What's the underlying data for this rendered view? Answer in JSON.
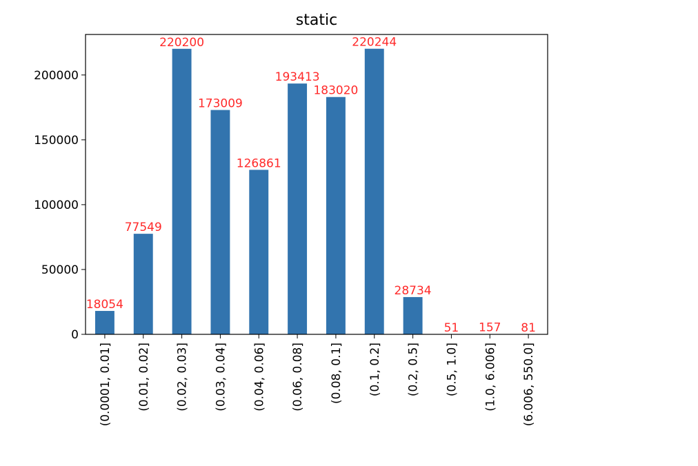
{
  "chart_data": {
    "type": "bar",
    "title": "static",
    "xlabel": "",
    "ylabel": "",
    "categories": [
      "(0.0001, 0.01]",
      "(0.01, 0.02]",
      "(0.02, 0.03]",
      "(0.03, 0.04]",
      "(0.04, 0.06]",
      "(0.06, 0.08]",
      "(0.08, 0.1]",
      "(0.1, 0.2]",
      "(0.2, 0.5]",
      "(0.5, 1.0]",
      "(1.0, 6.006]",
      "(6.006, 550.0]"
    ],
    "values": [
      18054,
      77549,
      220200,
      173009,
      126861,
      193413,
      183020,
      220244,
      28734,
      51,
      157,
      81
    ],
    "data_labels": [
      "18054",
      "77549",
      "220200",
      "173009",
      "126861",
      "193413",
      "183020",
      "220244",
      "28734",
      "51",
      "157",
      "81"
    ],
    "yticks": [
      0,
      50000,
      100000,
      150000,
      200000
    ],
    "ytick_labels": [
      "0",
      "50000",
      "100000",
      "150000",
      "200000"
    ],
    "ylim": [
      0,
      231256
    ],
    "grid": false,
    "legend": "none",
    "colors": {
      "bar": "#3274ae",
      "data_label": "#ff2a2a",
      "axis": "#000000",
      "background": "#ffffff"
    }
  }
}
